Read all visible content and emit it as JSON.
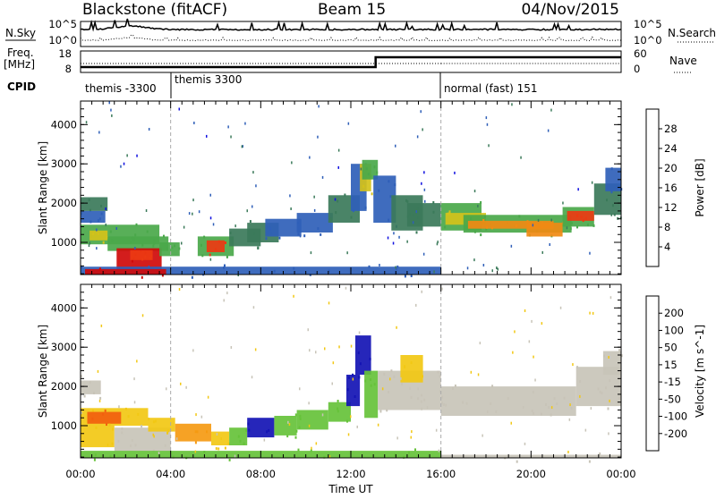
{
  "header": {
    "station": "Blackstone (fitACF)",
    "beam": "Beam 15",
    "date": "04/Nov/2015"
  },
  "status_panels": {
    "nsky_label": "N.Sky",
    "nsearch_label": "N.Search",
    "freq_label_line1": "Freq.",
    "freq_label_line2": "[MHz]",
    "nave_label": "Nave",
    "cpid_label": "CPID",
    "log_ticks": [
      "10^5",
      "10^0"
    ],
    "freq_ticks": [
      "18",
      "8"
    ],
    "nave_ticks": [
      "60",
      "0"
    ],
    "cpid_segments": [
      {
        "label": "themis -3300",
        "start_hour": 0,
        "end_hour": 4
      },
      {
        "label": "themis 3300",
        "start_hour": 4,
        "end_hour": 16
      },
      {
        "label": "normal (fast) 151",
        "start_hour": 16,
        "end_hour": 24
      }
    ]
  },
  "colors": {
    "power": [
      "#1010e0",
      "#2f5fb8",
      "#3b7a5a",
      "#4aa84a",
      "#d4c21a",
      "#f08a14",
      "#ec3a12",
      "#cf0a0a"
    ],
    "velocity": [
      "#ee1a1a",
      "#f2600e",
      "#f59a12",
      "#f2c814",
      "#c8c4b8",
      "#66c23a",
      "#3f9a72",
      "#2c3fd8",
      "#1414b4"
    ]
  },
  "chart_data": {
    "type": "heatmap",
    "x_axis": {
      "label": "Time UT",
      "range_hours": [
        0,
        24
      ],
      "ticks": [
        "00:00",
        "04:00",
        "08:00",
        "12:00",
        "16:00",
        "20:00",
        "00:00"
      ]
    },
    "y_axis": {
      "label": "Slant Range [km]",
      "range_km": [
        180,
        4600
      ],
      "ticks": [
        1000,
        2000,
        3000,
        4000
      ]
    },
    "panels": [
      {
        "name": "power",
        "colorbar_label": "Power [dB]",
        "colorbar_ticks": [
          "28",
          "24",
          "20",
          "16",
          "12",
          "8",
          "4"
        ],
        "value_range": [
          0,
          32
        ],
        "regions": [
          {
            "t0": 0.0,
            "t1": 1.2,
            "r0": 1800,
            "r1": 2150,
            "value": 8
          },
          {
            "t0": 0.0,
            "t1": 1.1,
            "r0": 1500,
            "r1": 1800,
            "value": 6
          },
          {
            "t0": 0.0,
            "t1": 3.5,
            "r0": 950,
            "r1": 1450,
            "value": 13
          },
          {
            "t0": 0.4,
            "t1": 1.2,
            "r0": 1050,
            "r1": 1300,
            "value": 18
          },
          {
            "t0": 1.2,
            "t1": 3.9,
            "r0": 780,
            "r1": 1150,
            "value": 13
          },
          {
            "t0": 1.6,
            "t1": 3.6,
            "r0": 300,
            "r1": 850,
            "value": 29
          },
          {
            "t0": 2.2,
            "t1": 3.2,
            "r0": 550,
            "r1": 800,
            "value": 24
          },
          {
            "t0": 3.5,
            "t1": 4.4,
            "r0": 650,
            "r1": 1000,
            "value": 12
          },
          {
            "t0": 5.2,
            "t1": 6.8,
            "r0": 650,
            "r1": 1150,
            "value": 13
          },
          {
            "t0": 5.6,
            "t1": 6.4,
            "r0": 750,
            "r1": 1050,
            "value": 25
          },
          {
            "t0": 6.6,
            "t1": 8.0,
            "r0": 900,
            "r1": 1350,
            "value": 8
          },
          {
            "t0": 7.4,
            "t1": 8.8,
            "r0": 1000,
            "r1": 1500,
            "value": 10
          },
          {
            "t0": 8.2,
            "t1": 9.8,
            "r0": 1150,
            "r1": 1600,
            "value": 6
          },
          {
            "t0": 9.6,
            "t1": 11.2,
            "r0": 1250,
            "r1": 1750,
            "value": 7
          },
          {
            "t0": 11.0,
            "t1": 12.4,
            "r0": 1500,
            "r1": 2200,
            "value": 9
          },
          {
            "t0": 12.0,
            "t1": 12.7,
            "r0": 1800,
            "r1": 3000,
            "value": 7
          },
          {
            "t0": 12.4,
            "t1": 12.9,
            "r0": 2300,
            "r1": 3000,
            "value": 18
          },
          {
            "t0": 12.5,
            "t1": 13.2,
            "r0": 2600,
            "r1": 3100,
            "value": 14
          },
          {
            "t0": 13.0,
            "t1": 14.0,
            "r0": 1500,
            "r1": 2700,
            "value": 7
          },
          {
            "t0": 13.8,
            "t1": 15.2,
            "r0": 1300,
            "r1": 2200,
            "value": 9
          },
          {
            "t0": 14.5,
            "t1": 16.0,
            "r0": 1400,
            "r1": 2000,
            "value": 11
          },
          {
            "t0": 16.0,
            "t1": 17.8,
            "r0": 1300,
            "r1": 2000,
            "value": 12
          },
          {
            "t0": 16.2,
            "t1": 18.0,
            "r0": 1450,
            "r1": 1750,
            "value": 19
          },
          {
            "t0": 17.0,
            "t1": 21.8,
            "r0": 1250,
            "r1": 1700,
            "value": 13
          },
          {
            "t0": 17.2,
            "t1": 21.0,
            "r0": 1350,
            "r1": 1550,
            "value": 20
          },
          {
            "t0": 19.8,
            "t1": 21.4,
            "r0": 1150,
            "r1": 1500,
            "value": 23
          },
          {
            "t0": 21.4,
            "t1": 22.8,
            "r0": 1400,
            "r1": 1900,
            "value": 12
          },
          {
            "t0": 21.6,
            "t1": 22.8,
            "r0": 1550,
            "r1": 1800,
            "value": 26
          },
          {
            "t0": 22.8,
            "t1": 24.0,
            "r0": 1700,
            "r1": 2500,
            "value": 11
          },
          {
            "t0": 23.3,
            "t1": 24.0,
            "r0": 2300,
            "r1": 2900,
            "value": 6
          },
          {
            "t0": 0.0,
            "t1": 16.0,
            "r0": 180,
            "r1": 380,
            "value": 5
          },
          {
            "t0": 0.2,
            "t1": 3.8,
            "r0": 180,
            "r1": 320,
            "value": 28
          }
        ]
      },
      {
        "name": "velocity",
        "colorbar_label": "Velocity [m s^-1]",
        "colorbar_ticks": [
          "200",
          "100",
          "50",
          "15",
          "-15",
          "-50",
          "-100",
          "-200"
        ],
        "value_range": [
          -250,
          250
        ],
        "regions": [
          {
            "t0": 0.0,
            "t1": 0.9,
            "r0": 1800,
            "r1": 2150,
            "value": 0
          },
          {
            "t0": 0.0,
            "t1": 3.0,
            "r0": 1000,
            "r1": 1450,
            "value": -70
          },
          {
            "t0": 0.3,
            "t1": 1.8,
            "r0": 1050,
            "r1": 1350,
            "value": -140
          },
          {
            "t0": 0.0,
            "t1": 1.5,
            "r0": 450,
            "r1": 1000,
            "value": -30
          },
          {
            "t0": 1.5,
            "t1": 4.0,
            "r0": 350,
            "r1": 950,
            "value": 0
          },
          {
            "t0": 3.0,
            "t1": 4.2,
            "r0": 850,
            "r1": 1200,
            "value": -60
          },
          {
            "t0": 4.2,
            "t1": 5.8,
            "r0": 600,
            "r1": 1050,
            "value": -90
          },
          {
            "t0": 5.8,
            "t1": 6.6,
            "r0": 500,
            "r1": 850,
            "value": -40
          },
          {
            "t0": 6.6,
            "t1": 7.4,
            "r0": 500,
            "r1": 950,
            "value": 40
          },
          {
            "t0": 7.4,
            "t1": 8.6,
            "r0": 700,
            "r1": 1200,
            "value": 220
          },
          {
            "t0": 8.6,
            "t1": 9.6,
            "r0": 750,
            "r1": 1250,
            "value": 60
          },
          {
            "t0": 9.6,
            "t1": 11.0,
            "r0": 900,
            "r1": 1400,
            "value": 40
          },
          {
            "t0": 11.0,
            "t1": 12.0,
            "r0": 1100,
            "r1": 1600,
            "value": 60
          },
          {
            "t0": 11.8,
            "t1": 12.4,
            "r0": 1500,
            "r1": 2300,
            "value": 200
          },
          {
            "t0": 12.2,
            "t1": 12.9,
            "r0": 2300,
            "r1": 3300,
            "value": 220
          },
          {
            "t0": 12.6,
            "t1": 13.2,
            "r0": 1200,
            "r1": 2400,
            "value": 40
          },
          {
            "t0": 13.2,
            "t1": 16.0,
            "r0": 1400,
            "r1": 2400,
            "value": 0
          },
          {
            "t0": 14.2,
            "t1": 15.2,
            "r0": 2100,
            "r1": 2800,
            "value": -60
          },
          {
            "t0": 16.0,
            "t1": 22.0,
            "r0": 1250,
            "r1": 2000,
            "value": 0
          },
          {
            "t0": 22.0,
            "t1": 24.0,
            "r0": 1500,
            "r1": 2500,
            "value": 0
          },
          {
            "t0": 23.2,
            "t1": 24.0,
            "r0": 2300,
            "r1": 2900,
            "value": 0
          },
          {
            "t0": 0.0,
            "t1": 16.0,
            "r0": 180,
            "r1": 360,
            "value": 40
          },
          {
            "t0": 16.0,
            "t1": 24.0,
            "r0": 180,
            "r1": 260,
            "value": 20
          }
        ]
      }
    ]
  }
}
